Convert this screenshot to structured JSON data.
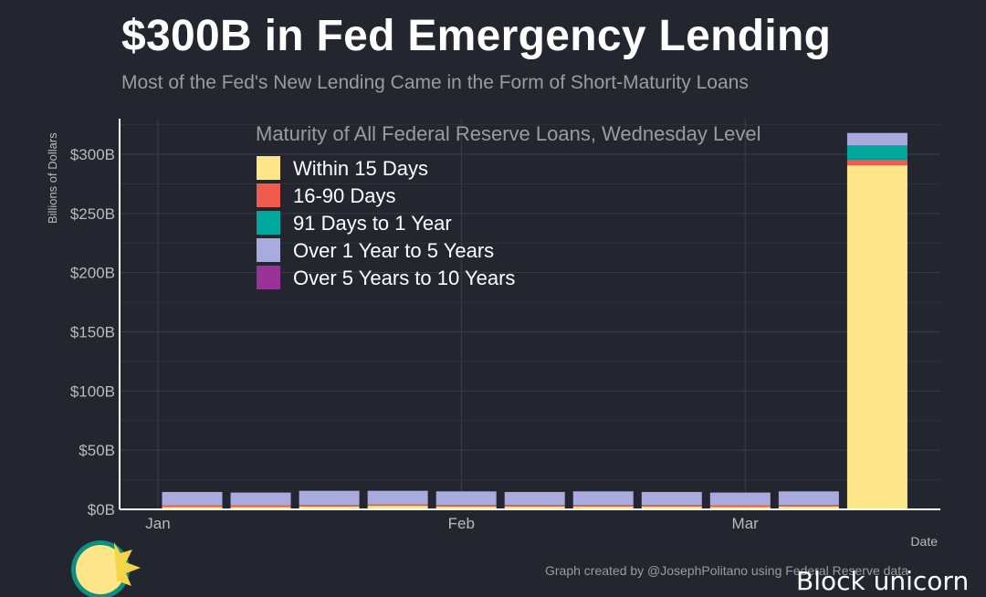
{
  "header": {
    "title": "$300B in Fed Emergency Lending",
    "subtitle": "Most of the Fed's New Lending Came in the Form of Short-Maturity Loans"
  },
  "footer": {
    "caption": "Graph created by @JosephPolitano using Federal Reserve data",
    "watermark": "Block unicorn"
  },
  "chart_data": {
    "type": "bar",
    "stacked": true,
    "legend_title": "Maturity of All Federal Reserve Loans, Wednesday Level",
    "legend_placement": "top-left",
    "xlabel": "Date",
    "ylabel": "Billions of Dollars",
    "ylim": [
      0,
      330
    ],
    "yticks": [
      0,
      50,
      100,
      150,
      200,
      250,
      300
    ],
    "ytick_labels": [
      "$0B",
      "$50B",
      "$100B",
      "$150B",
      "$200B",
      "$250B",
      "$300B"
    ],
    "xticks": [
      {
        "label": "Jan",
        "day": 0
      },
      {
        "label": "Feb",
        "day": 31
      },
      {
        "label": "Mar",
        "day": 60
      }
    ],
    "x_days": [
      0,
      7,
      14,
      21,
      28,
      35,
      42,
      49,
      56,
      63,
      70
    ],
    "categories": [
      "Jan 1",
      "Jan 8",
      "Jan 15",
      "Jan 22",
      "Jan 29",
      "Feb 5",
      "Feb 12",
      "Feb 19",
      "Feb 26",
      "Mar 4",
      "Mar 11"
    ],
    "series": [
      {
        "name": "Within 15 Days",
        "color": "#fde68a",
        "values": [
          2,
          2,
          2.5,
          3,
          2.5,
          2.5,
          2.5,
          2.5,
          2,
          2.5,
          290.7
        ]
      },
      {
        "name": "16-90 Days",
        "color": "#ef5b4c",
        "values": [
          1.2,
          1.2,
          1.2,
          1.2,
          1.2,
          1.2,
          1.2,
          1.2,
          1.2,
          1.2,
          4.8
        ]
      },
      {
        "name": "91 Days to 1 Year",
        "color": "#00a79d",
        "values": [
          0,
          0,
          0,
          0,
          0,
          0,
          0,
          0,
          0,
          0,
          12
        ]
      },
      {
        "name": "Over 1 Year to 5 Years",
        "color": "#a9aade",
        "values": [
          11.5,
          11,
          12,
          11.5,
          11.5,
          11,
          11.5,
          11,
          11,
          11.5,
          10.5
        ]
      },
      {
        "name": "Over 5 Years to 10 Years",
        "color": "#993399",
        "values": [
          0,
          0,
          0,
          0,
          0,
          0,
          0,
          0,
          0,
          0,
          0
        ]
      }
    ]
  }
}
